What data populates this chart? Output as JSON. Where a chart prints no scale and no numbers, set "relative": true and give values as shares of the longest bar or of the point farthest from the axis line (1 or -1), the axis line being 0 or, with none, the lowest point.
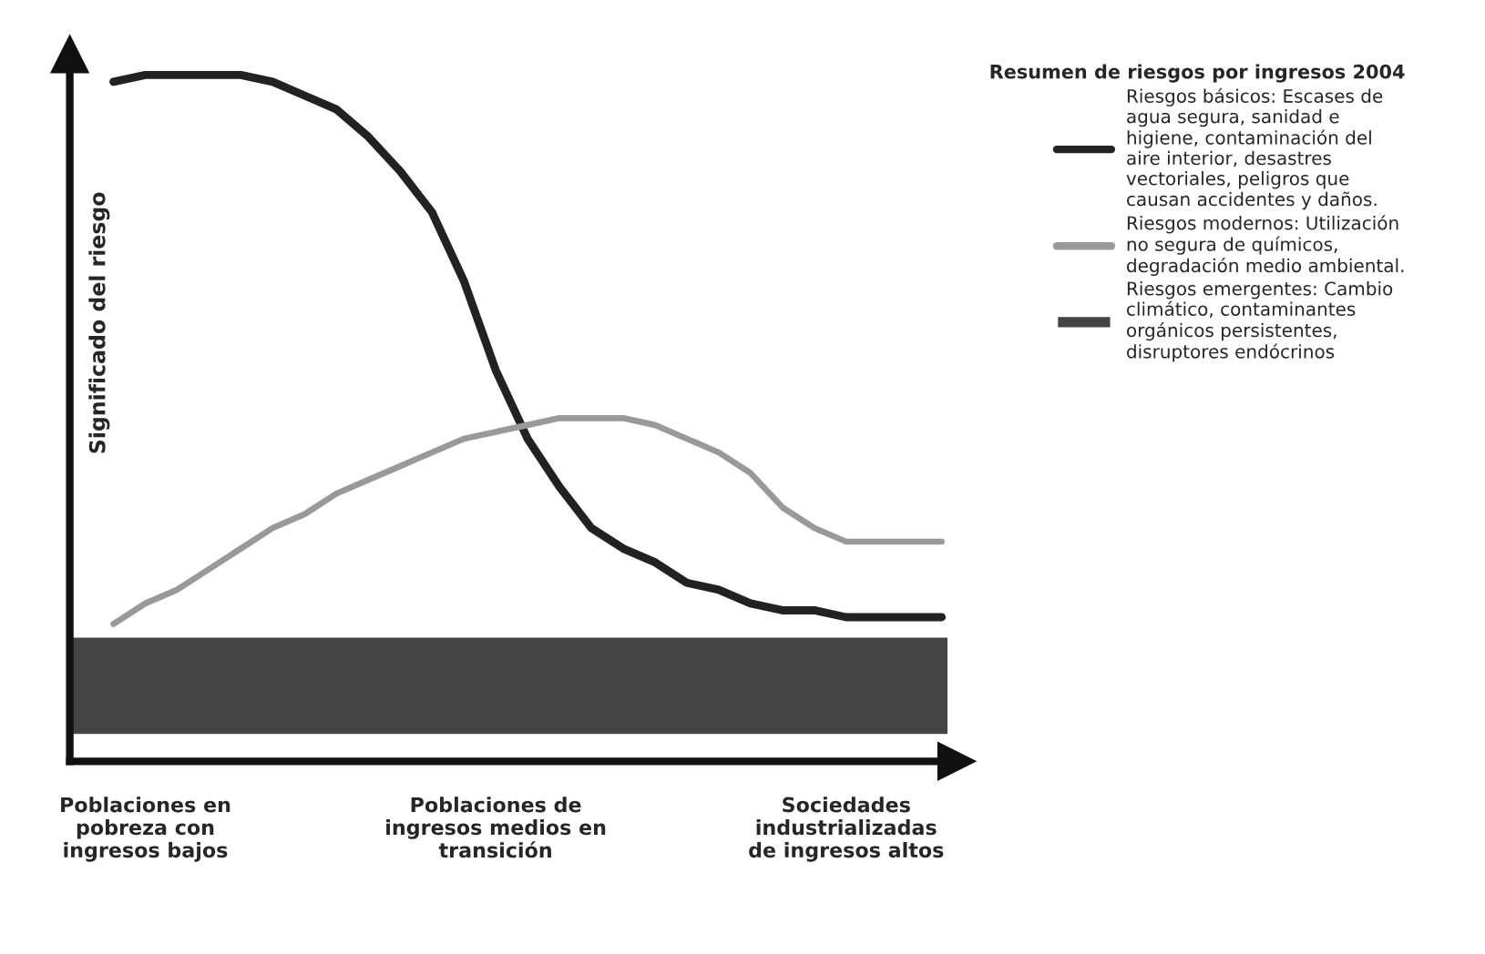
{
  "chart_data": {
    "type": "line",
    "relative": true,
    "ylabel": "Significado del riesgo",
    "legend_title": "Resumen de riesgos por ingresos 2004",
    "legend": "right",
    "grid": false,
    "tick_labels": "x",
    "marker": "none",
    "line_style": "solid",
    "categories": [
      null,
      "Poblaciones en pobreza con ingresos bajos",
      null,
      null,
      null,
      null,
      null,
      null,
      null,
      null,
      null,
      null,
      "Poblaciones de ingresos medios en transición",
      null,
      null,
      null,
      null,
      null,
      null,
      null,
      null,
      null,
      null,
      "Sociedades industrializadas de ingresos altos",
      null,
      null,
      null
    ],
    "series": [
      {
        "name": "Riesgos básicos: Escases de agua segura, sanidad e higiene, contaminación del aire interior, desastres vectoriales, peligros que causan accidentes y daños.",
        "color": "#222222",
        "values": [
          0.99,
          1.0,
          1.0,
          1.0,
          1.0,
          0.99,
          0.97,
          0.95,
          0.91,
          0.86,
          0.8,
          0.7,
          0.57,
          0.47,
          0.4,
          0.34,
          0.31,
          0.29,
          0.26,
          0.25,
          0.23,
          0.22,
          0.22,
          0.21,
          0.21,
          0.21,
          0.21
        ]
      },
      {
        "name": "Riesgos modernos: Utilización no segura de químicos, degradación medio ambiental.",
        "color": "#999999",
        "values": [
          0.2,
          0.23,
          0.25,
          0.28,
          0.31,
          0.34,
          0.36,
          0.39,
          0.41,
          0.43,
          0.45,
          0.47,
          0.48,
          0.49,
          0.5,
          0.5,
          0.5,
          0.49,
          0.47,
          0.45,
          0.42,
          0.37,
          0.34,
          0.32,
          0.32,
          0.32,
          0.32
        ]
      }
    ],
    "bands": [
      {
        "axis": "y",
        "from": 0.04,
        "to": 0.18,
        "label": "Riesgos emergentes: Cambio climático, contaminantes orgánicos persistentes, disruptores endócrinos",
        "color": "#444444"
      }
    ]
  }
}
